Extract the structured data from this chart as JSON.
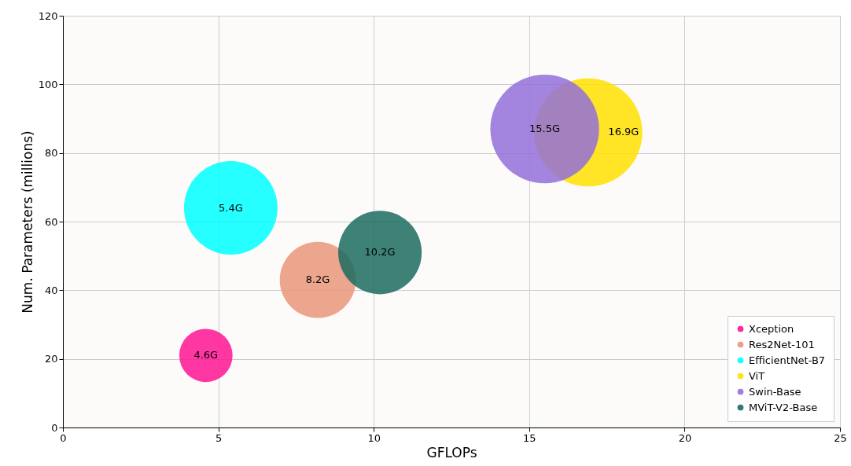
{
  "chart_data": {
    "type": "bubble",
    "xlabel": "GFLOPs",
    "ylabel": "Num. Parameters (millions)",
    "xlim": [
      0,
      25
    ],
    "ylim": [
      0,
      120
    ],
    "xticks": [
      0,
      5,
      10,
      15,
      20,
      25
    ],
    "yticks": [
      0,
      20,
      40,
      60,
      80,
      100,
      120
    ],
    "grid": true,
    "legend": "bottom right",
    "marker": "circle",
    "series": [
      {
        "name": "Xception",
        "color": "#ff1493",
        "x": [
          4.6
        ],
        "values": [
          21
        ],
        "sizes": [
          0.24
        ]
      },
      {
        "name": "Res2Net-101",
        "color": "#e9967a",
        "x": [
          8.2
        ],
        "values": [
          43
        ],
        "sizes": [
          0.49
        ]
      },
      {
        "name": "EfficientNet-B7",
        "color": "#00ffff",
        "x": [
          5.4
        ],
        "values": [
          64
        ],
        "sizes": [
          0.74
        ]
      },
      {
        "name": "ViT",
        "color": "#ffe100",
        "x": [
          16.9
        ],
        "values": [
          86
        ],
        "sizes": [
          0.99
        ]
      },
      {
        "name": "Swin-Base",
        "color": "#9370db",
        "x": [
          15.5
        ],
        "values": [
          87
        ],
        "sizes": [
          1
        ]
      },
      {
        "name": "MViT-V2-Base",
        "color": "#1b6b5f",
        "x": [
          10.2
        ],
        "values": [
          51
        ],
        "sizes": [
          0.59
        ]
      }
    ],
    "annotations": [
      {
        "text": "4.6G",
        "x": 4.6,
        "y": 21
      },
      {
        "text": "8.2G",
        "x": 8.2,
        "y": 43
      },
      {
        "text": "5.4G",
        "x": 5.4,
        "y": 64
      },
      {
        "text": "16.9G",
        "x": 16.9,
        "y": 86
      },
      {
        "text": "15.5G",
        "x": 15.5,
        "y": 87
      },
      {
        "text": "10.2G",
        "x": 10.2,
        "y": 51
      }
    ]
  }
}
